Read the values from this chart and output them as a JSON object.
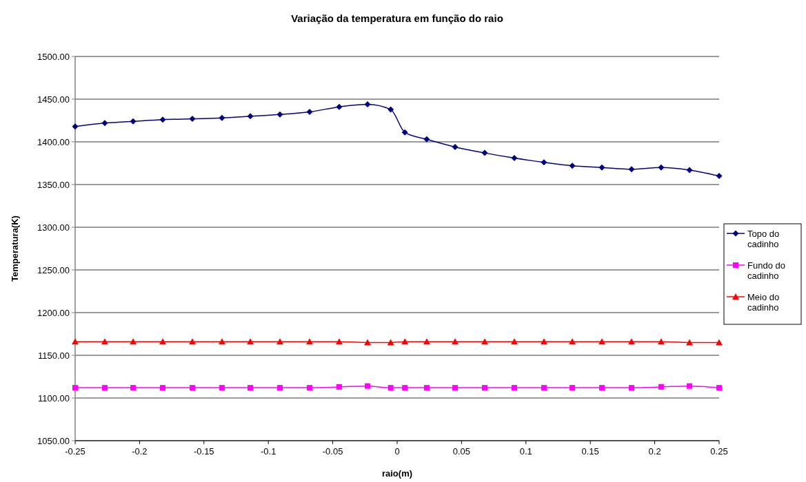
{
  "chart_data": {
    "type": "line",
    "title": "Variação da temperatura em função do raio",
    "xlabel": "raio(m)",
    "ylabel": "Temperatura(K)",
    "x": [
      -0.25,
      -0.227,
      -0.205,
      -0.182,
      -0.159,
      -0.136,
      -0.114,
      -0.091,
      -0.068,
      -0.045,
      -0.023,
      -0.005,
      0.006,
      0.023,
      0.045,
      0.068,
      0.091,
      0.114,
      0.136,
      0.159,
      0.182,
      0.205,
      0.227,
      0.25
    ],
    "series": [
      {
        "name": "Topo do cadinho",
        "color": "#000080",
        "marker": "diamond",
        "values": [
          1418,
          1422,
          1424,
          1426,
          1427,
          1428,
          1430,
          1432,
          1435,
          1441,
          1444,
          1438,
          1411,
          1403,
          1394,
          1387,
          1381,
          1376,
          1372,
          1370,
          1368,
          1370,
          1367,
          1360
        ]
      },
      {
        "name": "Fundo do cadinho",
        "color": "#ff00ff",
        "marker": "square",
        "values": [
          1112,
          1112,
          1112,
          1112,
          1112,
          1112,
          1112,
          1112,
          1112,
          1113,
          1114,
          1112,
          1112,
          1112,
          1112,
          1112,
          1112,
          1112,
          1112,
          1112,
          1112,
          1113,
          1114,
          1112
        ]
      },
      {
        "name": "Meio do cadinho",
        "color": "#ff0000",
        "marker": "triangle",
        "values": [
          1166,
          1166,
          1166,
          1166,
          1166,
          1166,
          1166,
          1166,
          1166,
          1166,
          1165,
          1165,
          1166,
          1166,
          1166,
          1166,
          1166,
          1166,
          1166,
          1166,
          1166,
          1166,
          1165,
          1165
        ]
      }
    ],
    "xlim": [
      -0.25,
      0.25
    ],
    "xticks": [
      -0.25,
      -0.2,
      -0.15,
      -0.1,
      -0.05,
      0,
      0.05,
      0.1,
      0.15,
      0.2,
      0.25
    ],
    "ylim": [
      1050,
      1500
    ],
    "yticks": [
      {
        "value": 1050,
        "label": "1050.00"
      },
      {
        "value": 1100,
        "label": "1100.00"
      },
      {
        "value": 1150,
        "label": "1150.00"
      },
      {
        "value": 1200,
        "label": "1200.00"
      },
      {
        "value": 1250,
        "label": "1250.00"
      },
      {
        "value": 1300,
        "label": "1300.00"
      },
      {
        "value": 1350,
        "label": "1350.00"
      },
      {
        "value": 1400,
        "label": "1400.00"
      },
      {
        "value": 1450,
        "label": "1450.00"
      },
      {
        "value": 1500,
        "label": "1500.00"
      }
    ],
    "grid": "y",
    "legend": "right",
    "line_style": "solid"
  }
}
